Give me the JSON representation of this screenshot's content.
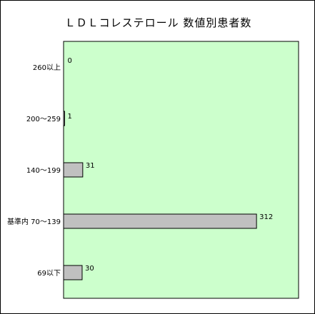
{
  "chart_data": {
    "type": "bar",
    "orientation": "horizontal",
    "title": "ＬＤＬコレステロール 数値別患者数",
    "categories": [
      "260以上",
      "200～259",
      "140～199",
      "基準内 70～139",
      "69以下"
    ],
    "values": [
      0,
      1,
      31,
      312,
      30
    ],
    "xlim": [
      0,
      380
    ],
    "grid": false,
    "legend": "none",
    "colors": {
      "plot_background": "#ccffcc",
      "bar_fill": "#c0c0c0",
      "bar_stroke": "#000000",
      "axis": "#000000"
    }
  }
}
